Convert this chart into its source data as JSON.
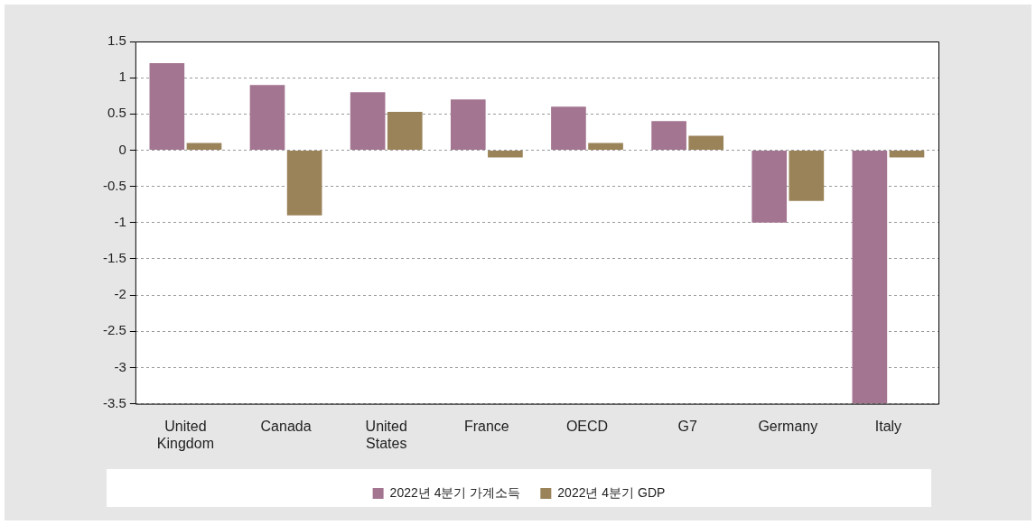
{
  "chart_data": {
    "type": "bar",
    "categories": [
      "United Kingdom",
      "Canada",
      "United States",
      "France",
      "OECD",
      "G7",
      "Germany",
      "Italy"
    ],
    "series": [
      {
        "name": "2022년 4분기 가계소득",
        "color": "#a37590",
        "values": [
          1.2,
          0.9,
          0.8,
          0.7,
          0.6,
          0.4,
          -1.0,
          -3.5
        ]
      },
      {
        "name": "2022년 4분기 GDP",
        "color": "#9a8358",
        "values": [
          0.1,
          -0.9,
          0.53,
          -0.1,
          0.1,
          0.2,
          -0.7,
          -0.1
        ]
      }
    ],
    "ylim": [
      -3.5,
      1.5
    ],
    "yticks": [
      1.5,
      1,
      0.5,
      0,
      -0.5,
      -1,
      -1.5,
      -2,
      -2.5,
      -3,
      -3.5
    ],
    "grid": "y",
    "legend": "bottom"
  }
}
